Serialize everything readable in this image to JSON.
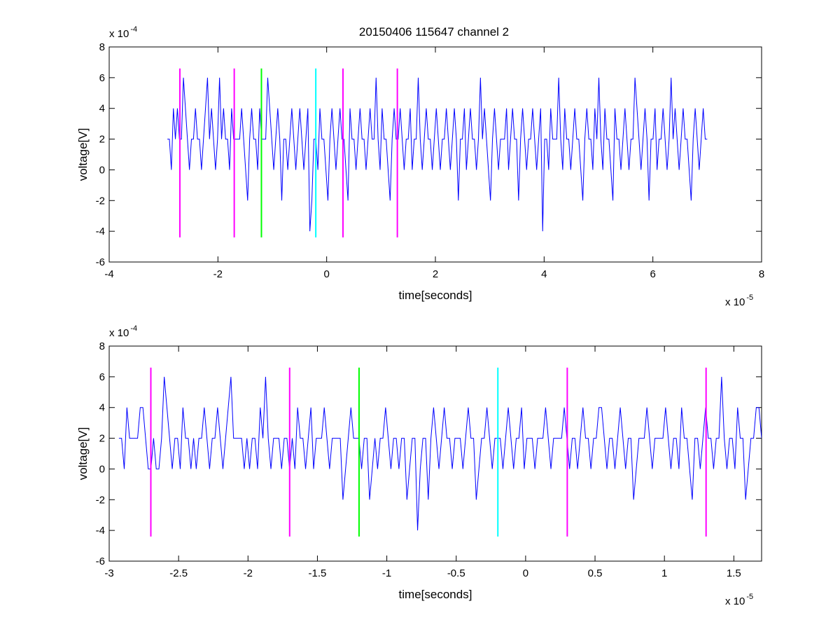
{
  "figure": {
    "title": "20150406 115647 channel 2"
  },
  "chart_data": [
    {
      "type": "line",
      "title": "20150406 115647 channel 2",
      "xlabel": "time[seconds]",
      "ylabel": "voltage[V]",
      "x_multiplier": "x 10",
      "x_exponent": "-5",
      "y_multiplier": "x 10",
      "y_exponent": "-4",
      "xlim": [
        -4,
        8
      ],
      "ylim": [
        -6,
        8
      ],
      "xticks": [
        -4,
        -2,
        0,
        2,
        4,
        6,
        8
      ],
      "xtick_labels": [
        "-4",
        "-2",
        "0",
        "2",
        "4",
        "6",
        "8"
      ],
      "yticks": [
        -6,
        -4,
        -2,
        0,
        2,
        4,
        6,
        8
      ],
      "ytick_labels": [
        "-6",
        "-4",
        "-2",
        "0",
        "2",
        "4",
        "6",
        "8"
      ],
      "grid": false,
      "series": [
        {
          "color": "#0000ff",
          "x_start": -2.93,
          "x_end": 7.0,
          "sample_values": [
            2,
            2,
            0,
            4,
            2,
            4,
            2,
            2,
            6,
            4,
            2,
            0,
            2,
            2,
            4,
            2,
            2,
            0,
            2,
            4,
            6,
            2,
            4,
            2,
            0,
            2,
            6,
            2,
            4,
            2,
            2,
            0,
            4,
            2,
            2,
            2,
            2,
            4,
            2,
            0,
            -2,
            2,
            4,
            2,
            2,
            0,
            4,
            2,
            2,
            2,
            6,
            4,
            2,
            0,
            2,
            4,
            2,
            -2,
            2,
            2,
            0,
            2,
            4,
            2,
            0,
            2,
            4,
            2,
            0,
            2,
            4,
            -4,
            -2,
            2,
            2,
            0,
            4,
            2,
            2,
            0,
            -2,
            2,
            4,
            2,
            0,
            2,
            4,
            2,
            2,
            0,
            -2,
            4,
            2,
            2,
            0,
            2,
            4,
            2,
            2,
            0,
            2,
            4,
            2,
            2,
            6,
            2,
            0,
            4,
            2,
            2,
            0,
            -2,
            2,
            4,
            2,
            2,
            4,
            2,
            0,
            2,
            2,
            4,
            0,
            2,
            2,
            6,
            2,
            0,
            2,
            4,
            2,
            2,
            0,
            2,
            4,
            2,
            0,
            2,
            2,
            4,
            2,
            0,
            2,
            4,
            2,
            -2,
            2,
            2,
            4,
            0,
            2,
            4,
            2,
            2,
            0,
            2,
            6,
            2,
            4,
            2,
            0,
            -2,
            2,
            4,
            2,
            0,
            2,
            2,
            2,
            4,
            0,
            2,
            4,
            2,
            2,
            -2,
            2,
            4,
            2,
            0,
            2,
            2,
            4,
            2,
            0,
            2,
            4,
            -4,
            2,
            2,
            0,
            4,
            2,
            2,
            2,
            6,
            2,
            0,
            4,
            2,
            2,
            0,
            2,
            4,
            2,
            2,
            0,
            -2,
            2,
            4,
            2,
            2,
            0,
            4,
            2,
            6,
            2,
            0,
            4,
            2,
            2,
            0,
            -2,
            4,
            2,
            2,
            0,
            2,
            4,
            2,
            0,
            2,
            2,
            6,
            4,
            2,
            0,
            2,
            4,
            2,
            -2,
            2,
            2,
            4,
            0,
            2,
            2,
            4,
            2,
            0,
            2,
            6,
            2,
            4,
            2,
            0,
            2,
            4,
            2,
            2,
            0,
            -2,
            2,
            4,
            2,
            0,
            2,
            4,
            2,
            2
          ]
        }
      ],
      "markers": [
        {
          "x": -2.7,
          "color": "#ff00ff"
        },
        {
          "x": -1.7,
          "color": "#ff00ff"
        },
        {
          "x": -1.2,
          "color": "#00ff00"
        },
        {
          "x": -0.2,
          "color": "#00ffff"
        },
        {
          "x": 0.3,
          "color": "#ff00ff"
        },
        {
          "x": 1.3,
          "color": "#ff00ff"
        }
      ],
      "marker_range": [
        -4.4,
        6.6
      ]
    },
    {
      "type": "line",
      "xlabel": "time[seconds]",
      "ylabel": "voltage[V]",
      "x_multiplier": "x 10",
      "x_exponent": "-5",
      "y_multiplier": "x 10",
      "y_exponent": "-4",
      "xlim": [
        -3.0,
        1.7
      ],
      "ylim": [
        -6,
        8
      ],
      "xticks": [
        -3,
        -2.5,
        -2,
        -1.5,
        -1,
        -0.5,
        0,
        0.5,
        1,
        1.5
      ],
      "xtick_labels": [
        "-3",
        "-2.5",
        "-2",
        "-1.5",
        "-1",
        "-0.5",
        "0",
        "0.5",
        "1",
        "1.5"
      ],
      "yticks": [
        -6,
        -4,
        -2,
        0,
        2,
        4,
        6,
        8
      ],
      "ytick_labels": [
        "-6",
        "-4",
        "-2",
        "0",
        "2",
        "4",
        "6",
        "8"
      ],
      "grid": false,
      "series": [
        {
          "color": "#0000ff",
          "x_start": -2.93,
          "x_end": 1.7,
          "sample_values": [
            2,
            2,
            0,
            4,
            2,
            2,
            2,
            2,
            4,
            4,
            2,
            0,
            0,
            2,
            0,
            0,
            2,
            6,
            4,
            2,
            0,
            2,
            2,
            0,
            4,
            2,
            2,
            0,
            2,
            0,
            2,
            2,
            4,
            2,
            0,
            2,
            2,
            4,
            2,
            0,
            2,
            4,
            6,
            2,
            2,
            2,
            2,
            0,
            2,
            0,
            2,
            2,
            0,
            4,
            2,
            6,
            2,
            0,
            2,
            2,
            2,
            0,
            2,
            2,
            0,
            2,
            0,
            4,
            2,
            2,
            0,
            2,
            4,
            0,
            2,
            2,
            2,
            4,
            2,
            0,
            2,
            2,
            2,
            2,
            -2,
            0,
            2,
            4,
            2,
            2,
            2,
            0,
            2,
            2,
            -2,
            0,
            2,
            0,
            2,
            2,
            4,
            2,
            0,
            2,
            2,
            0,
            2,
            2,
            -2,
            0,
            2,
            2,
            -4,
            0,
            2,
            2,
            -2,
            2,
            4,
            2,
            0,
            2,
            4,
            2,
            2,
            0,
            2,
            2,
            2,
            0,
            2,
            4,
            2,
            2,
            -2,
            0,
            2,
            2,
            4,
            2,
            0,
            2,
            2,
            2,
            0,
            2,
            4,
            2,
            0,
            2,
            2,
            4,
            0,
            2,
            2,
            2,
            0,
            2,
            2,
            2,
            4,
            2,
            0,
            2,
            2,
            2,
            2,
            4,
            2,
            0,
            2,
            2,
            0,
            2,
            4,
            2,
            2,
            0,
            2,
            2,
            4,
            4,
            2,
            0,
            2,
            2,
            0,
            2,
            4,
            2,
            0,
            2,
            2,
            -2,
            0,
            2,
            2,
            2,
            4,
            2,
            0,
            2,
            2,
            2,
            2,
            4,
            2,
            0,
            2,
            2,
            0,
            4,
            2,
            2,
            0,
            -2,
            2,
            2,
            0,
            2,
            4,
            2,
            2,
            0,
            2,
            2,
            6,
            2,
            0,
            2,
            2,
            0,
            4,
            2,
            2,
            -2,
            0,
            2,
            2,
            4,
            4,
            2
          ]
        }
      ],
      "markers": [
        {
          "x": -2.7,
          "color": "#ff00ff"
        },
        {
          "x": -1.7,
          "color": "#ff00ff"
        },
        {
          "x": -1.2,
          "color": "#00ff00"
        },
        {
          "x": -0.2,
          "color": "#00ffff"
        },
        {
          "x": 0.3,
          "color": "#ff00ff"
        },
        {
          "x": 1.3,
          "color": "#ff00ff"
        }
      ],
      "marker_range": [
        -4.4,
        6.6
      ]
    }
  ]
}
